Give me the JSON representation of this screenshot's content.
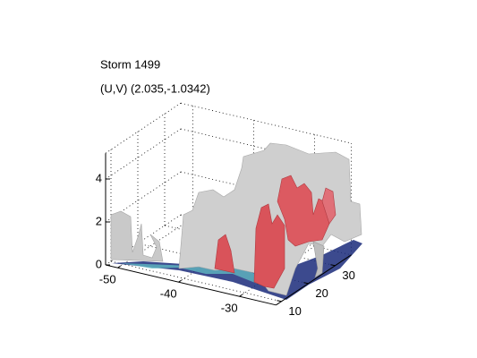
{
  "chart_data": {
    "type": "isosurface3d",
    "title": "Storm 1499",
    "subtitle": "(U,V) (2.035,-1.0342)",
    "xlim": [
      -52,
      -24
    ],
    "ylim": [
      8,
      36
    ],
    "zlim": [
      0,
      5.2
    ],
    "xticks": [
      -50,
      -40,
      -30
    ],
    "yticks": [
      10,
      20,
      30
    ],
    "zticks": [
      0,
      2,
      4
    ],
    "grid": true
  }
}
